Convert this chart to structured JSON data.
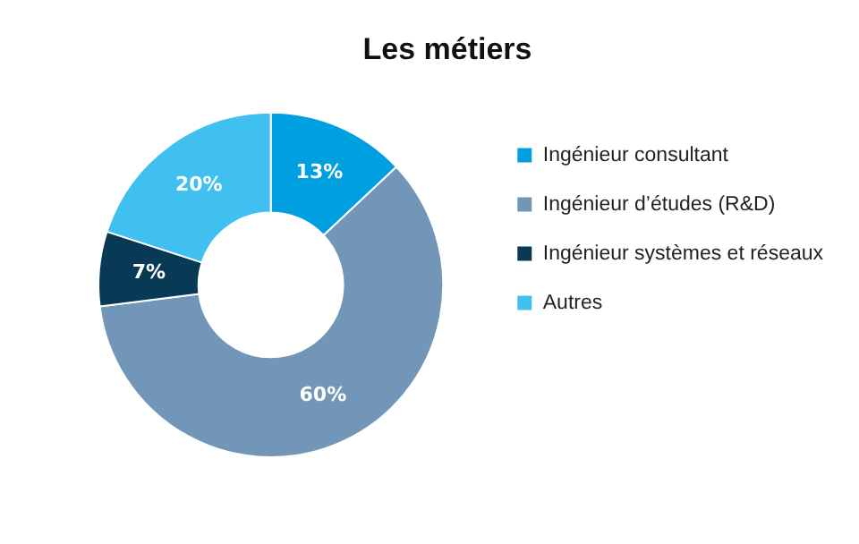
{
  "chart_data": {
    "type": "donut",
    "title": "Les métiers",
    "categories": [
      "Ingénieur consultant",
      "Ingénieur d’études (R&D)",
      "Ingénieur systèmes et réseaux",
      "Autres"
    ],
    "values": [
      13,
      60,
      7,
      20
    ],
    "colors": [
      "#00a0e0",
      "#7296b8",
      "#083a56",
      "#40c0f0"
    ],
    "value_labels": [
      "13%",
      "60%",
      "7%",
      "20%"
    ],
    "legend": "right"
  }
}
